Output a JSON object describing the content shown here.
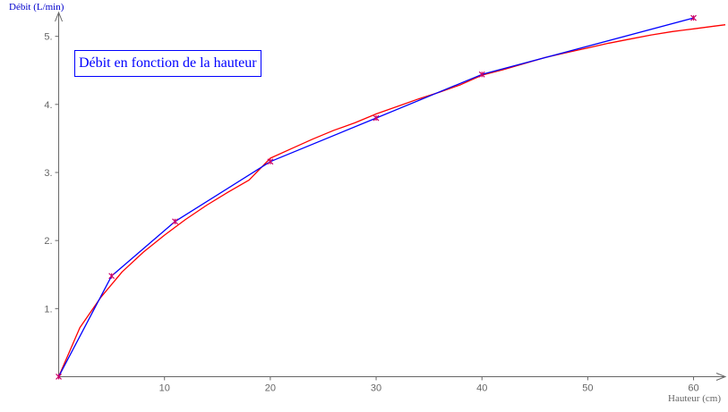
{
  "chart_data": {
    "type": "line",
    "title": "Débit en fonction de la hauteur",
    "xlabel": "Hauteur (cm)",
    "ylabel": "Débit (L/min)",
    "xlim": [
      -2.5,
      63
    ],
    "ylim": [
      -0.02,
      5.35
    ],
    "x_ticks": [
      10,
      20,
      30,
      40,
      50,
      60
    ],
    "y_ticks": [
      1,
      2,
      3,
      4,
      5
    ],
    "grid": false,
    "series": [
      {
        "color": "#0000ff",
        "marker_color": "#cc0066",
        "x": [
          0,
          5,
          11,
          20,
          30,
          40,
          60
        ],
        "y": [
          0,
          1.48,
          2.28,
          3.16,
          3.8,
          4.44,
          5.27
        ]
      },
      {
        "color": "#ff0000",
        "x": [
          0,
          2,
          4,
          6,
          8,
          10,
          12,
          14,
          16,
          18,
          20,
          22,
          24,
          26,
          28,
          30,
          32,
          34,
          36,
          38,
          40,
          42,
          44,
          46,
          48,
          50,
          52,
          54,
          56,
          58,
          60,
          62,
          63
        ],
        "y": [
          0,
          0.72,
          1.17,
          1.54,
          1.83,
          2.08,
          2.31,
          2.52,
          2.71,
          2.89,
          3.21,
          3.35,
          3.49,
          3.62,
          3.73,
          3.86,
          3.97,
          4.08,
          4.18,
          4.29,
          4.43,
          4.51,
          4.6,
          4.69,
          4.76,
          4.83,
          4.9,
          4.96,
          5.02,
          5.07,
          5.11,
          5.15,
          5.17
        ]
      }
    ]
  }
}
